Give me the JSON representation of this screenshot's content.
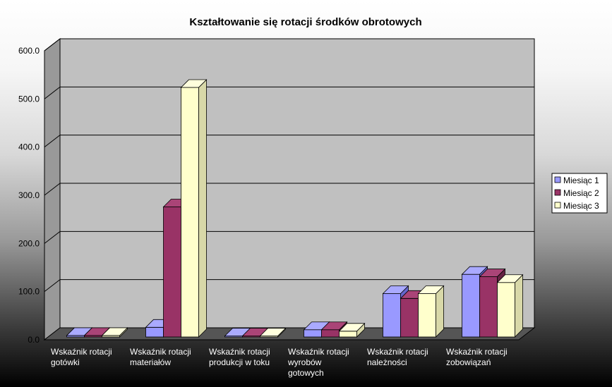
{
  "chart_data": {
    "type": "bar",
    "title": "Kształtowanie się rotacji środków obrotowych",
    "categories": [
      [
        "Wskaźnik rotacji",
        "gotówki"
      ],
      [
        "Wskaźnik rotacji",
        "materiałów"
      ],
      [
        "Wskaźnik rotacji",
        "produkcji w toku"
      ],
      [
        "Wskaźnik rotacji",
        "wyrobów",
        "gotowych"
      ],
      [
        "Wskaźnik rotacji",
        "należności"
      ],
      [
        "Wskaźnik rotacji",
        "zobowiązań"
      ]
    ],
    "series": [
      {
        "name": "Miesiąc 1",
        "values": [
          3,
          20,
          2,
          15,
          90,
          130
        ],
        "color": "#9999ff",
        "top": "#aaaaff",
        "side": "#6666cc"
      },
      {
        "name": "Miesiąc 2",
        "values": [
          3,
          270,
          2,
          15,
          80,
          125
        ],
        "color": "#993366",
        "top": "#aa4477",
        "side": "#662244"
      },
      {
        "name": "Miesiąc 3",
        "values": [
          3,
          518,
          2,
          12,
          90,
          113
        ],
        "color": "#ffffcc",
        "top": "#ffffdd",
        "side": "#d8d8a8"
      }
    ],
    "yticks": [
      "0.0",
      "100.0",
      "200.0",
      "300.0",
      "400.0",
      "500.0",
      "600.0"
    ],
    "ylim": [
      0,
      600
    ],
    "grid": true,
    "legend": "right"
  }
}
